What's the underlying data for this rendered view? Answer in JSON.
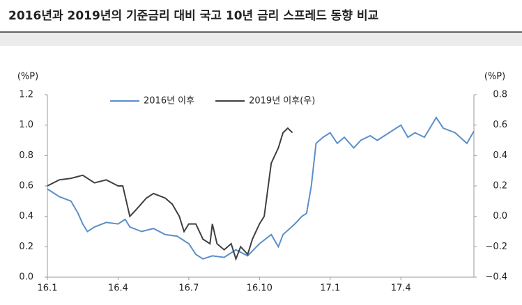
{
  "chart_data": {
    "type": "line",
    "title": "2016년과 2019년의 기준금리 대비 국고 10년 금리 스프레드 동향 비교",
    "y_label": "(%P)",
    "y2_label": "(%P)",
    "xlim": [
      0,
      18.1
    ],
    "xticks": [
      {
        "value": 0,
        "label": "16.1"
      },
      {
        "value": 3,
        "label": "16.4"
      },
      {
        "value": 6,
        "label": "16.7"
      },
      {
        "value": 9,
        "label": "16.10"
      },
      {
        "value": 12,
        "label": "17.1"
      },
      {
        "value": 15,
        "label": "17.4"
      }
    ],
    "ylim": [
      0,
      1.2
    ],
    "yticks": [
      {
        "value": 0,
        "label": "0.0"
      },
      0.2,
      0.4,
      0.6,
      0.8,
      {
        "value": 1,
        "label": "1.0"
      },
      1.2
    ],
    "y2lim": [
      -0.4,
      0.8
    ],
    "y2ticks": [
      {
        "value": -0.4,
        "label": "−0.4"
      },
      {
        "value": -0.2,
        "label": "−0.2"
      },
      {
        "value": 0,
        "label": "0.0"
      },
      0.2,
      0.4,
      0.6,
      0.8
    ],
    "legend": "top",
    "series": [
      {
        "name": "2016년 이후",
        "color": "#5b8fc9",
        "x": [
          0,
          0.5,
          1.0,
          1.3,
          1.5,
          1.7,
          2.0,
          2.5,
          3.0,
          3.3,
          3.5,
          4.0,
          4.5,
          5.0,
          5.5,
          6.0,
          6.3,
          6.6,
          7.0,
          7.5,
          8.0,
          8.5,
          9.0,
          9.5,
          9.8,
          10.0,
          10.5,
          10.8,
          11.0,
          11.2,
          11.4,
          11.7,
          12.0,
          12.3,
          12.6,
          13.0,
          13.3,
          13.7,
          14.0,
          14.5,
          15.0,
          15.3,
          15.6,
          16.0,
          16.5,
          16.8,
          17.3,
          17.8,
          18.1
        ],
        "values": [
          0.58,
          0.53,
          0.5,
          0.42,
          0.35,
          0.3,
          0.33,
          0.36,
          0.35,
          0.38,
          0.33,
          0.3,
          0.32,
          0.28,
          0.27,
          0.22,
          0.15,
          0.12,
          0.14,
          0.13,
          0.18,
          0.14,
          0.22,
          0.28,
          0.2,
          0.28,
          0.35,
          0.4,
          0.42,
          0.6,
          0.88,
          0.92,
          0.95,
          0.88,
          0.92,
          0.85,
          0.9,
          0.93,
          0.9,
          0.95,
          1.0,
          0.92,
          0.95,
          0.92,
          1.05,
          0.98,
          0.95,
          0.88,
          0.96
        ]
      },
      {
        "name": "2019년 이후(우)",
        "color": "#404040",
        "axis": "y2",
        "x": [
          0,
          0.5,
          1.0,
          1.5,
          2.0,
          2.5,
          3.0,
          3.2,
          3.5,
          3.8,
          4.2,
          4.5,
          5.0,
          5.3,
          5.6,
          5.8,
          6.0,
          6.3,
          6.6,
          6.9,
          7.0,
          7.2,
          7.5,
          7.8,
          8.0,
          8.2,
          8.5,
          8.7,
          9.0,
          9.2,
          9.5,
          9.8,
          10.0,
          10.2,
          10.4
        ],
        "values": [
          0.2,
          0.24,
          0.25,
          0.27,
          0.22,
          0.24,
          0.2,
          0.2,
          0.0,
          0.05,
          0.12,
          0.15,
          0.12,
          0.08,
          0.0,
          -0.1,
          -0.05,
          -0.05,
          -0.15,
          -0.18,
          -0.05,
          -0.18,
          -0.22,
          -0.18,
          -0.28,
          -0.2,
          -0.25,
          -0.15,
          -0.05,
          0.0,
          0.35,
          0.45,
          0.55,
          0.58,
          0.55
        ]
      }
    ]
  }
}
